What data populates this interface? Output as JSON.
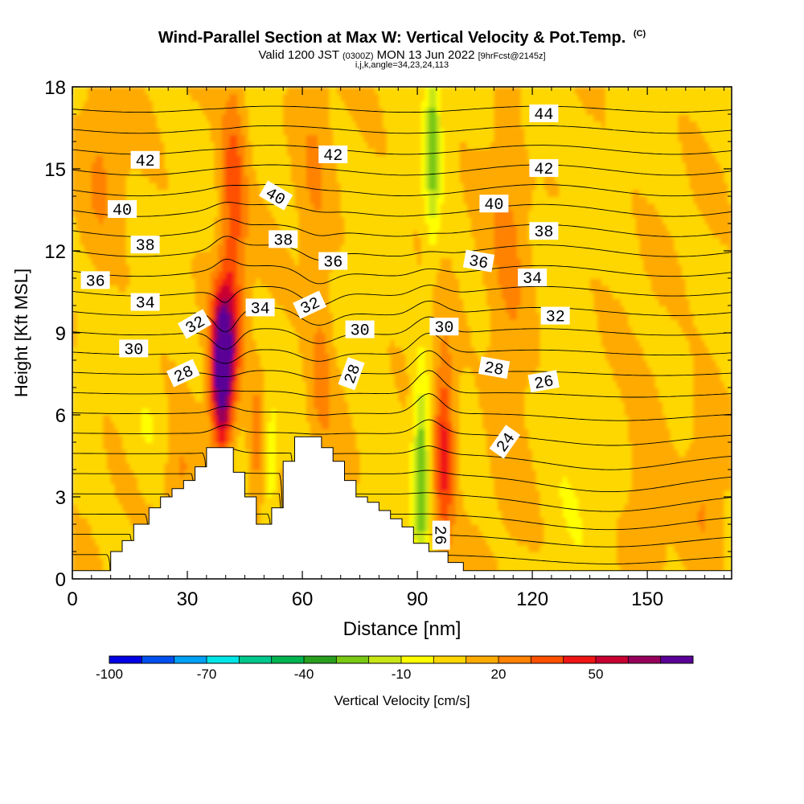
{
  "header": {
    "title": "Wind-Parallel Section at Max W: Vertical Velocity & Pot.Temp.",
    "corner_mark": "(C)",
    "valid_prefix": "Valid 1200 JST",
    "valid_utc": "(0300Z)",
    "valid_date": "MON 13 Jun 2022",
    "forecast": "[9hrFcst@2145z]",
    "indices": "i,j,k,angle=34,23,24,113"
  },
  "chart_data": {
    "type": "contour-section",
    "title": "Wind-Parallel Section at Max W: Vertical Velocity & Pot.Temp.",
    "xlabel": "Distance [nm]",
    "ylabel": "Height [Kft MSL]",
    "xlim": [
      0,
      172
    ],
    "ylim": [
      0,
      18
    ],
    "x_ticks": [
      0,
      30,
      60,
      90,
      120,
      150
    ],
    "y_ticks": [
      0,
      3,
      6,
      9,
      12,
      15,
      18
    ],
    "colorbar": {
      "label": "Vertical Velocity [cm/s]",
      "tick_labels": [
        -100,
        -70,
        -40,
        -10,
        20,
        50
      ],
      "bins": [
        -100,
        -90,
        -80,
        -70,
        -60,
        -50,
        -40,
        -30,
        -20,
        -10,
        0,
        10,
        20,
        30,
        40,
        50,
        60,
        70
      ],
      "colors": [
        "#0000e6",
        "#0050f0",
        "#00a0f5",
        "#00e6e6",
        "#00c88c",
        "#00b450",
        "#28a01e",
        "#78c814",
        "#c8e614",
        "#ffff00",
        "#ffd700",
        "#ffaa00",
        "#ff8200",
        "#ff5000",
        "#f01414",
        "#c80032",
        "#96005a",
        "#5a0096"
      ]
    },
    "terrain": [
      {
        "x": 0,
        "z": 0.3
      },
      {
        "x": 10,
        "z": 0.3
      },
      {
        "x": 10,
        "z": 1.0
      },
      {
        "x": 13,
        "z": 1.0
      },
      {
        "x": 13,
        "z": 1.4
      },
      {
        "x": 16,
        "z": 1.4
      },
      {
        "x": 16,
        "z": 2.0
      },
      {
        "x": 20,
        "z": 2.0
      },
      {
        "x": 20,
        "z": 2.6
      },
      {
        "x": 23,
        "z": 2.6
      },
      {
        "x": 23,
        "z": 3.0
      },
      {
        "x": 26,
        "z": 3.0
      },
      {
        "x": 26,
        "z": 3.3
      },
      {
        "x": 29,
        "z": 3.3
      },
      {
        "x": 29,
        "z": 3.6
      },
      {
        "x": 32,
        "z": 3.6
      },
      {
        "x": 32,
        "z": 4.1
      },
      {
        "x": 35,
        "z": 4.1
      },
      {
        "x": 35,
        "z": 4.8
      },
      {
        "x": 42,
        "z": 4.8
      },
      {
        "x": 42,
        "z": 3.9
      },
      {
        "x": 45,
        "z": 3.9
      },
      {
        "x": 45,
        "z": 3.0
      },
      {
        "x": 48,
        "z": 3.0
      },
      {
        "x": 48,
        "z": 2.0
      },
      {
        "x": 52,
        "z": 2.0
      },
      {
        "x": 52,
        "z": 2.6
      },
      {
        "x": 55,
        "z": 2.6
      },
      {
        "x": 55,
        "z": 4.3
      },
      {
        "x": 58,
        "z": 4.3
      },
      {
        "x": 58,
        "z": 5.2
      },
      {
        "x": 65,
        "z": 5.2
      },
      {
        "x": 65,
        "z": 4.8
      },
      {
        "x": 68,
        "z": 4.8
      },
      {
        "x": 68,
        "z": 4.3
      },
      {
        "x": 71,
        "z": 4.3
      },
      {
        "x": 71,
        "z": 3.6
      },
      {
        "x": 74,
        "z": 3.6
      },
      {
        "x": 74,
        "z": 3.0
      },
      {
        "x": 77,
        "z": 3.0
      },
      {
        "x": 77,
        "z": 2.8
      },
      {
        "x": 80,
        "z": 2.8
      },
      {
        "x": 80,
        "z": 2.5
      },
      {
        "x": 83,
        "z": 2.5
      },
      {
        "x": 83,
        "z": 2.2
      },
      {
        "x": 86,
        "z": 2.2
      },
      {
        "x": 86,
        "z": 1.9
      },
      {
        "x": 89,
        "z": 1.9
      },
      {
        "x": 89,
        "z": 1.3
      },
      {
        "x": 93,
        "z": 1.3
      },
      {
        "x": 93,
        "z": 1.0
      },
      {
        "x": 98,
        "z": 1.0
      },
      {
        "x": 98,
        "z": 0.6
      },
      {
        "x": 102,
        "z": 0.6
      },
      {
        "x": 102,
        "z": 0.3
      },
      {
        "x": 172,
        "z": 0.3
      }
    ],
    "w_features": [
      {
        "x": 39,
        "z": 7.2,
        "sx": 2.0,
        "sz": 1.8,
        "w": 70
      },
      {
        "x": 40,
        "z": 9.0,
        "sx": 2.5,
        "sz": 1.5,
        "w": 35
      },
      {
        "x": 42,
        "z": 14.0,
        "sx": 2.5,
        "sz": 3.5,
        "w": 28
      },
      {
        "x": 97,
        "z": 4.8,
        "sx": 2.0,
        "sz": 2.5,
        "w": 38
      },
      {
        "x": 91,
        "z": 4.0,
        "sx": 1.5,
        "sz": 2.5,
        "w": -38
      },
      {
        "x": 94,
        "z": 16.0,
        "sx": 1.5,
        "sz": 2.5,
        "w": -33
      },
      {
        "x": 52,
        "z": 4.5,
        "sx": 1.0,
        "sz": 1.5,
        "w": -15
      },
      {
        "x": 48,
        "z": 5.0,
        "sx": 1.5,
        "sz": 1.8,
        "w": 18
      },
      {
        "x": 65,
        "z": 7.5,
        "sx": 2.5,
        "sz": 2.5,
        "w": 15
      },
      {
        "x": 63,
        "z": 15.0,
        "sx": 3.0,
        "sz": 3.5,
        "w": 10
      },
      {
        "x": 114,
        "z": 11.0,
        "sx": 4.0,
        "sz": 5.0,
        "w": 14
      },
      {
        "x": 150,
        "z": 3.5,
        "sx": 4.0,
        "sz": 2.5,
        "w": 12
      },
      {
        "x": 165,
        "z": 4.0,
        "sx": 3.0,
        "sz": 2.5,
        "w": 12
      },
      {
        "x": 8,
        "z": 16.0,
        "sx": 4.0,
        "sz": 3.0,
        "w": 12
      },
      {
        "x": 28,
        "z": 3.5,
        "sx": 3.0,
        "sz": 1.5,
        "w": 14
      },
      {
        "x": 20,
        "z": 5.5,
        "sx": 4.0,
        "sz": 1.5,
        "w": -8
      },
      {
        "x": 80,
        "z": 5.0,
        "sx": 4.0,
        "sz": 3.0,
        "w": -6
      },
      {
        "x": 130,
        "z": 5.0,
        "sx": 5.0,
        "sz": 3.0,
        "w": -8
      },
      {
        "x": 120,
        "z": 17.0,
        "sx": 4.0,
        "sz": 1.5,
        "w": -10
      }
    ],
    "theta_levels": [
      22,
      23,
      24,
      25,
      26,
      27,
      28,
      29,
      30,
      31,
      32,
      33,
      34,
      35,
      36,
      37,
      38,
      39,
      40,
      41,
      42,
      43,
      44,
      45
    ],
    "contour_labels": [
      {
        "text": "42",
        "x": 19,
        "z": 15.3,
        "angle": 0
      },
      {
        "text": "40",
        "x": 13,
        "z": 13.5,
        "angle": 0
      },
      {
        "text": "38",
        "x": 19,
        "z": 12.2,
        "angle": 0
      },
      {
        "text": "36",
        "x": 6,
        "z": 10.9,
        "angle": 0
      },
      {
        "text": "34",
        "x": 19,
        "z": 10.1,
        "angle": 0
      },
      {
        "text": "32",
        "x": 32,
        "z": 9.3,
        "angle": -30
      },
      {
        "text": "30",
        "x": 16,
        "z": 8.4,
        "angle": 0
      },
      {
        "text": "28",
        "x": 29,
        "z": 7.5,
        "angle": -25
      },
      {
        "text": "34",
        "x": 49,
        "z": 9.9,
        "angle": 0
      },
      {
        "text": "32",
        "x": 62,
        "z": 10.0,
        "angle": -25
      },
      {
        "text": "40",
        "x": 53,
        "z": 14.0,
        "angle": 30
      },
      {
        "text": "38",
        "x": 55,
        "z": 12.4,
        "angle": 0
      },
      {
        "text": "36",
        "x": 68,
        "z": 11.6,
        "angle": 0
      },
      {
        "text": "42",
        "x": 68,
        "z": 15.5,
        "angle": 0
      },
      {
        "text": "30",
        "x": 75,
        "z": 9.1,
        "angle": 0
      },
      {
        "text": "28",
        "x": 73,
        "z": 7.5,
        "angle": -70
      },
      {
        "text": "30",
        "x": 97,
        "z": 9.2,
        "angle": 0
      },
      {
        "text": "36",
        "x": 106,
        "z": 11.6,
        "angle": 10
      },
      {
        "text": "34",
        "x": 120,
        "z": 11.0,
        "angle": 0
      },
      {
        "text": "40",
        "x": 110,
        "z": 13.7,
        "angle": 0
      },
      {
        "text": "38",
        "x": 123,
        "z": 12.7,
        "angle": 0
      },
      {
        "text": "42",
        "x": 123,
        "z": 15.0,
        "angle": 0
      },
      {
        "text": "44",
        "x": 123,
        "z": 17.0,
        "angle": 0
      },
      {
        "text": "32",
        "x": 126,
        "z": 9.6,
        "angle": 0
      },
      {
        "text": "28",
        "x": 110,
        "z": 7.7,
        "angle": 10
      },
      {
        "text": "26",
        "x": 123,
        "z": 7.2,
        "angle": -10
      },
      {
        "text": "24",
        "x": 113,
        "z": 5.0,
        "angle": -55
      },
      {
        "text": "26",
        "x": 96,
        "z": 1.6,
        "angle": 90
      }
    ]
  }
}
